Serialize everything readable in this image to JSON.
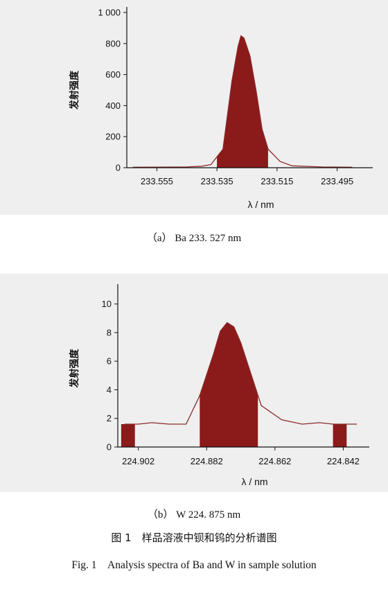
{
  "chart_data": [
    {
      "type": "area",
      "caption": "（a） Ba 233. 527 nm",
      "ylabel": "发射强度",
      "xlabel": "λ / nm",
      "xticks": [
        "233.555",
        "233.535",
        "233.515",
        "233.495"
      ],
      "yticks": [
        "0",
        "200",
        "400",
        "600",
        "800",
        "1 000"
      ],
      "ylim": [
        0,
        1000
      ],
      "xlim": [
        233.565,
        233.485
      ],
      "line_color": "#8b2a2a",
      "fill_color": "#8b1a1a",
      "x": [
        233.563,
        233.545,
        233.54,
        233.537,
        233.533,
        233.53,
        233.528,
        233.527,
        233.526,
        233.524,
        233.522,
        233.52,
        233.518,
        233.514,
        233.51,
        233.5,
        233.49
      ],
      "y": [
        3,
        5,
        10,
        20,
        120,
        560,
        780,
        850,
        835,
        720,
        500,
        250,
        120,
        40,
        12,
        5,
        3
      ],
      "filled_regions": [
        [
          233.535,
          233.518
        ]
      ]
    },
    {
      "type": "area",
      "caption": "（b） W 224. 875 nm",
      "ylabel": "发射强度",
      "xlabel": "λ / nm",
      "xticks": [
        "224.902",
        "224.882",
        "224.862",
        "224.842"
      ],
      "yticks": [
        "0",
        "2",
        "4",
        "6",
        "8",
        "10"
      ],
      "ylim": [
        0,
        11
      ],
      "xlim": [
        224.908,
        224.836
      ],
      "line_color": "#8b2a2a",
      "fill_color": "#8b1a1a",
      "x": [
        224.906,
        224.902,
        224.898,
        224.893,
        224.888,
        224.884,
        224.88,
        224.878,
        224.876,
        224.874,
        224.872,
        224.869,
        224.866,
        224.86,
        224.854,
        224.849,
        224.845,
        224.841,
        224.838
      ],
      "y": [
        1.6,
        1.6,
        1.7,
        1.6,
        1.6,
        3.6,
        6.5,
        8.1,
        8.7,
        8.4,
        7.3,
        5.1,
        2.9,
        1.9,
        1.6,
        1.7,
        1.6,
        1.6,
        1.6
      ],
      "filled_regions": [
        [
          224.907,
          224.903
        ],
        [
          224.884,
          224.867
        ],
        [
          224.845,
          224.841
        ]
      ]
    }
  ],
  "figure_caption_cn": "图 1　样品溶液中钡和钨的分析谱图",
  "figure_caption_en": "Fig. 1　Analysis spectra of Ba and W in sample solution"
}
